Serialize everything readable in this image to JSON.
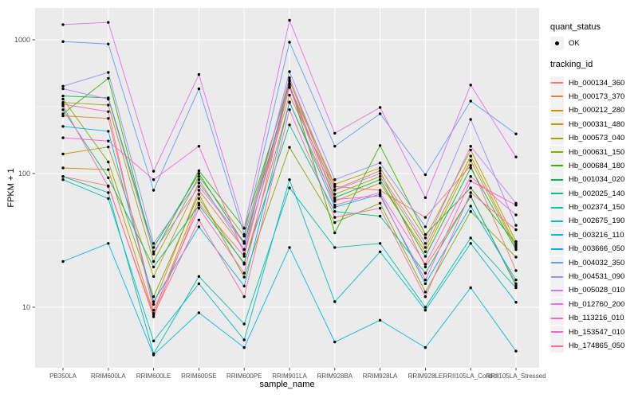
{
  "chart_data": {
    "type": "line",
    "title": "",
    "xlabel": "sample_name",
    "ylabel": "FPKM + 1",
    "y_scale": "log10",
    "y_ticks": [
      10,
      100,
      1000
    ],
    "y_minor_ticks": [
      31.623,
      316.23
    ],
    "ylim": [
      3.5,
      1730
    ],
    "grid": true,
    "legend_position": "right",
    "marker": "black point",
    "colors": {
      "panel_bg": "#EBEBEB",
      "grid": "#FFFFFF",
      "legend_key_bg": "#F2F2F2",
      "axis_text": "#4D4D4D",
      "tick_mark": "#333333",
      "point": "#000000"
    },
    "legend": {
      "quant_status_title": "quant_status",
      "quant_status_items": [
        "OK"
      ],
      "tracking_id_title": "tracking_id"
    },
    "x_categories": [
      "PB350LA",
      "RRIM600LA",
      "RRIM600LE",
      "RRIM600SE",
      "RRIM600PE",
      "RRIM901LA",
      "RRIM928BA",
      "RRIM928LA",
      "RRIM928LE",
      "RRII105LA_Control",
      "RRII105LA_Stressed"
    ],
    "series": [
      {
        "name": "Hb_000134_360",
        "color": "#F8766D",
        "values": [
          95,
          81,
          8.5,
          60,
          24,
          490,
          80,
          75,
          47,
          115,
          18.8
        ]
      },
      {
        "name": "Hb_000173_370",
        "color": "#EA8331",
        "values": [
          270,
          258,
          10.5,
          75,
          27,
          385,
          76,
          105,
          20,
          67,
          15
        ]
      },
      {
        "name": "Hb_000212_280",
        "color": "#D89000",
        "values": [
          110,
          107,
          9,
          65,
          21,
          340,
          62,
          85,
          26,
          125,
          28
        ]
      },
      {
        "name": "Hb_000331_480",
        "color": "#C09B00",
        "values": [
          140,
          158,
          17,
          85,
          30,
          445,
          83,
          110,
          33,
          150,
          31
        ]
      },
      {
        "name": "Hb_000573_040",
        "color": "#A3A500",
        "values": [
          340,
          325,
          22,
          95,
          34,
          500,
          70,
          95,
          28,
          135,
          29
        ]
      },
      {
        "name": "Hb_000631_150",
        "color": "#7CAE00",
        "values": [
          360,
          122,
          12,
          70,
          16.8,
          157,
          43,
          60,
          13,
          52,
          23.7
        ]
      },
      {
        "name": "Hb_000684_180",
        "color": "#39B600",
        "values": [
          280,
          515,
          25,
          105,
          39,
          470,
          36,
          162,
          35,
          78,
          30
        ]
      },
      {
        "name": "Hb_001034_020",
        "color": "#00BB4E",
        "values": [
          380,
          368,
          28,
          100,
          30,
          443,
          66,
          90,
          24,
          110,
          27
        ]
      },
      {
        "name": "Hb_002025_140",
        "color": "#00C087",
        "values": [
          300,
          93,
          20,
          58,
          21.5,
          231,
          52,
          48,
          18,
          68,
          14.5
        ]
      },
      {
        "name": "Hb_002374_150",
        "color": "#00C1A9",
        "values": [
          95,
          72,
          4.5,
          17,
          7.5,
          78,
          28,
          30,
          10,
          33,
          14
        ]
      },
      {
        "name": "Hb_002675_190",
        "color": "#00BFC4",
        "values": [
          90,
          65,
          5.6,
          15,
          5.7,
          90,
          11,
          26,
          9.5,
          30,
          10.9
        ]
      },
      {
        "name": "Hb_003216_110",
        "color": "#00BAE0",
        "values": [
          22,
          30,
          4.4,
          9.1,
          5,
          28,
          5.5,
          8,
          5,
          14,
          4.7
        ]
      },
      {
        "name": "Hb_003666_050",
        "color": "#00B0F6",
        "values": [
          225,
          207,
          11,
          40,
          14.4,
          343,
          56,
          70,
          15,
          57,
          16
        ]
      },
      {
        "name": "Hb_004032_350",
        "color": "#619CFF",
        "values": [
          970,
          930,
          75,
          430,
          35,
          960,
          160,
          280,
          98,
          348,
          198
        ]
      },
      {
        "name": "Hb_004531_090",
        "color": "#9590FF",
        "values": [
          450,
          570,
          30,
          90,
          27,
          578,
          90,
          120,
          40,
          254,
          41
        ]
      },
      {
        "name": "Hb_005028_010",
        "color": "#C77CFF",
        "values": [
          430,
          360,
          26,
          80,
          31,
          520,
          75,
          100,
          30,
          160,
          60
        ]
      },
      {
        "name": "Hb_012760_200",
        "color": "#E76BF3",
        "values": [
          1300,
          1350,
          104,
          550,
          39,
          1400,
          200,
          312,
          66,
          459,
          133
        ]
      },
      {
        "name": "Hb_113216_010",
        "color": "#FA62DB",
        "values": [
          185,
          175,
          90,
          160,
          25,
          440,
          58,
          72,
          21,
          95,
          49
        ]
      },
      {
        "name": "Hb_153547_010",
        "color": "#FF61C9",
        "values": [
          330,
          290,
          9.5,
          55,
          18,
          460,
          64,
          68,
          16,
          88,
          58
        ]
      },
      {
        "name": "Hb_174865_050",
        "color": "#FF689F",
        "values": [
          320,
          80,
          8.8,
          45,
          12,
          300,
          47,
          55,
          12,
          72,
          38
        ]
      }
    ]
  }
}
